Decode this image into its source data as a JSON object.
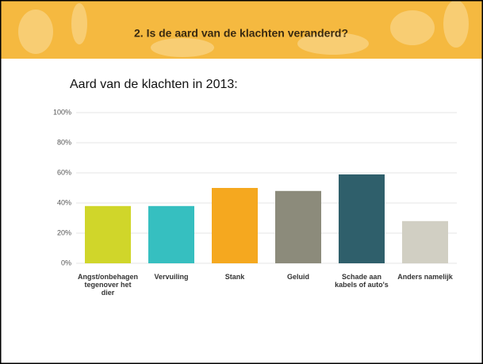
{
  "header": {
    "title": "2. Is de aard van de klachten veranderd?"
  },
  "chart_data": {
    "type": "bar",
    "title": "Aard van de klachten in 2013:",
    "categories": [
      "Angst/onbehagen tegenover het dier",
      "Vervuiling",
      "Stank",
      "Geluid",
      "Schade aan kabels of auto's",
      "Anders namelijk"
    ],
    "values": [
      38,
      38,
      50,
      48,
      59,
      28
    ],
    "colors": [
      "#d0d62a",
      "#36bfc0",
      "#f5a81f",
      "#8c8b7b",
      "#2f5f6b",
      "#d1cfc3"
    ],
    "ylim": [
      0,
      100
    ],
    "yticks": [
      {
        "value": 0,
        "label": "0%"
      },
      {
        "value": 20,
        "label": "20%"
      },
      {
        "value": 40,
        "label": "40%"
      },
      {
        "value": 60,
        "label": "60%"
      },
      {
        "value": 80,
        "label": "80%"
      },
      {
        "value": 100,
        "label": "100%"
      }
    ],
    "grid": true
  }
}
